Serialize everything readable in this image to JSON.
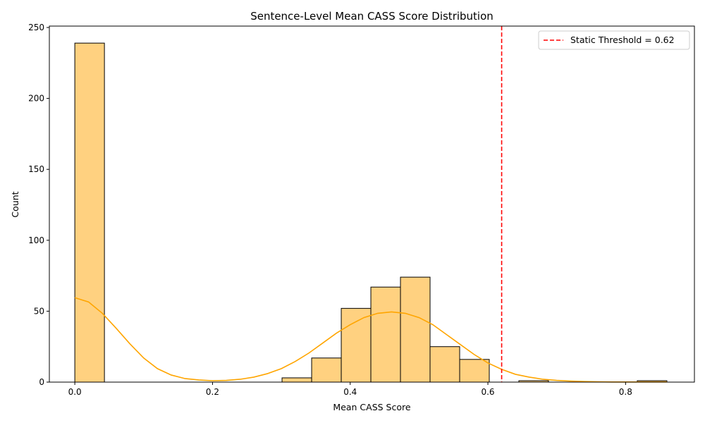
{
  "chart_data": {
    "type": "histogram",
    "title": "Sentence-Level Mean CASS Score Distribution",
    "xlabel": "Mean CASS Score",
    "ylabel": "Count",
    "xlim": [
      -0.037,
      0.9
    ],
    "ylim": [
      0,
      251
    ],
    "x_ticks": [
      0.0,
      0.2,
      0.4,
      0.6,
      0.8
    ],
    "x_tick_labels": [
      "0.0",
      "0.2",
      "0.4",
      "0.6",
      "0.8"
    ],
    "y_ticks": [
      0,
      50,
      100,
      150,
      200,
      250
    ],
    "y_tick_labels": [
      "0",
      "50",
      "100",
      "150",
      "200",
      "250"
    ],
    "bins": [
      {
        "x0": 0.0,
        "x1": 0.043,
        "count": 239
      },
      {
        "x0": 0.301,
        "x1": 0.344,
        "count": 3
      },
      {
        "x0": 0.344,
        "x1": 0.387,
        "count": 17
      },
      {
        "x0": 0.387,
        "x1": 0.43,
        "count": 52
      },
      {
        "x0": 0.43,
        "x1": 0.473,
        "count": 67
      },
      {
        "x0": 0.473,
        "x1": 0.516,
        "count": 74
      },
      {
        "x0": 0.516,
        "x1": 0.559,
        "count": 25
      },
      {
        "x0": 0.559,
        "x1": 0.602,
        "count": 16
      },
      {
        "x0": 0.645,
        "x1": 0.688,
        "count": 1
      },
      {
        "x0": 0.817,
        "x1": 0.86,
        "count": 1
      }
    ],
    "kde": {
      "x": [
        0.0,
        0.02,
        0.04,
        0.06,
        0.08,
        0.1,
        0.12,
        0.14,
        0.16,
        0.18,
        0.2,
        0.22,
        0.24,
        0.26,
        0.28,
        0.3,
        0.32,
        0.34,
        0.36,
        0.38,
        0.4,
        0.42,
        0.44,
        0.46,
        0.48,
        0.5,
        0.52,
        0.54,
        0.56,
        0.58,
        0.6,
        0.62,
        0.64,
        0.66,
        0.68,
        0.7,
        0.72,
        0.74,
        0.76,
        0.78,
        0.8,
        0.82,
        0.84,
        0.86
      ],
      "y": [
        59.5,
        56.5,
        48.5,
        38.0,
        27.0,
        17.0,
        9.5,
        5.0,
        2.5,
        1.5,
        1.0,
        1.2,
        2.0,
        3.5,
        6.0,
        9.5,
        14.5,
        20.5,
        27.5,
        34.5,
        40.5,
        45.5,
        48.5,
        49.5,
        48.5,
        45.5,
        40.5,
        33.5,
        26.5,
        19.5,
        13.5,
        9.0,
        5.5,
        3.5,
        2.0,
        1.2,
        0.7,
        0.4,
        0.2,
        0.1,
        0.1,
        0.1,
        0.1,
        0.1
      ]
    },
    "threshold": {
      "value": 0.62,
      "label": "Static Threshold = 0.62"
    },
    "legend_position": "upper right",
    "colors": {
      "bar_fill": "#ffd180",
      "bar_edge": "#000000",
      "kde_line": "#ffa500",
      "threshold_line": "#ff0000"
    }
  }
}
